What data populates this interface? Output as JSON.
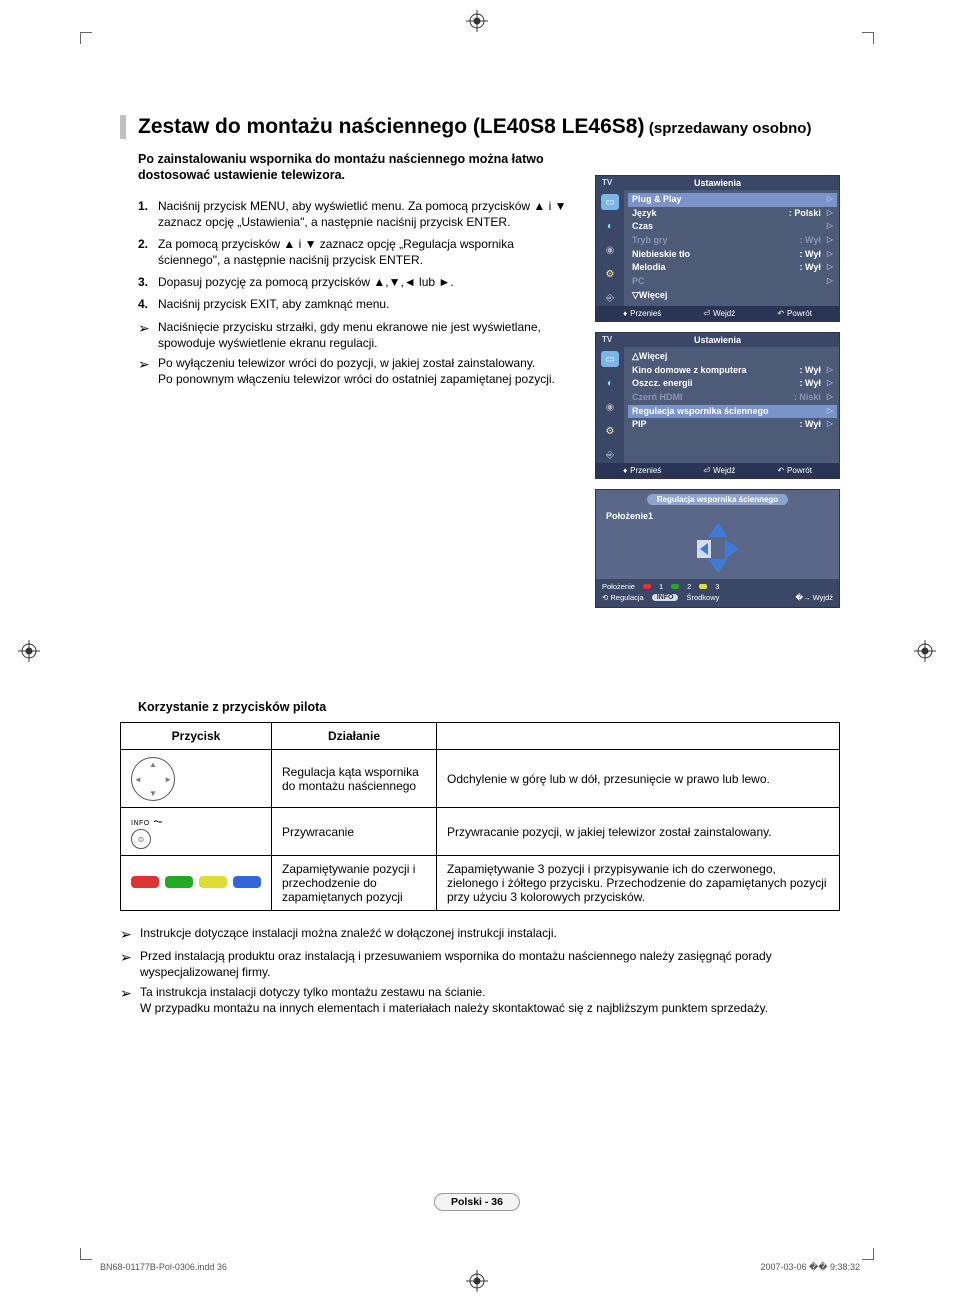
{
  "title": {
    "main": "Zestaw do montażu naściennego (LE40S8 LE46S8)",
    "subtitle": "(sprzedawany osobno)"
  },
  "intro": "Po zainstalowaniu wspornika do montażu naściennego można łatwo dostosować ustawienie telewizora.",
  "steps": [
    {
      "num": "1.",
      "text": "Naciśnij przycisk MENU, aby wyświetlić menu. Za pomocą przycisków ▲ i ▼ zaznacz opcję „Ustawienia\", a następnie naciśnij przycisk ENTER."
    },
    {
      "num": "2.",
      "text": "Za pomocą przycisków ▲ i ▼ zaznacz opcję „Regulacja wspornika ściennego\", a następnie naciśnij przycisk ENTER."
    },
    {
      "num": "3.",
      "text": "Dopasuj pozycję za pomocą przycisków ▲,▼,◄ lub ►."
    },
    {
      "num": "4.",
      "text": "Naciśnij przycisk EXIT, aby zamknąć menu."
    }
  ],
  "step_notes": [
    "Naciśnięcie przycisku strzałki, gdy menu ekranowe nie jest wyświetlane, spowoduje wyświetlenie ekranu regulacji.",
    "Po wyłączeniu telewizor wróci do pozycji, w jakiej został zainstalowany.\nPo ponownym włączeniu telewizor wróci do ostatniej zapamiętanej pozycji."
  ],
  "osd1": {
    "tv": "TV",
    "title": "Ustawienia",
    "rows": [
      {
        "label": "Plug & Play",
        "val": "",
        "sel": true
      },
      {
        "label": "Język",
        "val": ": Polski"
      },
      {
        "label": "Czas",
        "val": ""
      },
      {
        "label": "Tryb gry",
        "val": ": Wył",
        "dim": true
      },
      {
        "label": "Niebieskie tło",
        "val": ": Wył"
      },
      {
        "label": "Melodia",
        "val": ": Wył"
      },
      {
        "label": "PC",
        "val": "",
        "dim": true
      },
      {
        "label": "▽Więcej",
        "val": ""
      }
    ],
    "footer": {
      "move": "Przenieś",
      "enter": "Wejdź",
      "return": "Powrót"
    }
  },
  "osd2": {
    "tv": "TV",
    "title": "Ustawienia",
    "rows": [
      {
        "label": "△Więcej",
        "val": ""
      },
      {
        "label": "Kino domowe z komputera",
        "val": ": Wył"
      },
      {
        "label": "Oszcz. energii",
        "val": ": Wył"
      },
      {
        "label": "Czerń HDMI",
        "val": ": Niski",
        "dim": true
      },
      {
        "label": "Regulacja wspornika ściennego",
        "val": "",
        "sel": true
      },
      {
        "label": "PIP",
        "val": ": Wył"
      }
    ],
    "footer": {
      "move": "Przenieś",
      "enter": "Wejdź",
      "return": "Powrót"
    }
  },
  "osd3": {
    "title": "Regulacja wspornika ściennego",
    "position_label": "Położenie1",
    "foot_pos": "Położenie",
    "foot_nums": [
      "1",
      "2",
      "3"
    ],
    "foot_adjust": "Regulacja",
    "foot_center": "Środkowy",
    "foot_exit": "Wyjdź",
    "info": "INFO"
  },
  "remote": {
    "heading": "Korzystanie z przycisków pilota",
    "headers": {
      "button": "Przycisk",
      "action": "Działanie"
    },
    "rows": [
      {
        "icon": "dpad",
        "action": "Regulacja kąta wspornika do montażu naściennego",
        "desc": "Odchylenie w górę lub w dół, przesunięcie w prawo lub lewo."
      },
      {
        "icon": "info",
        "info_label": "INFO",
        "action": "Przywracanie",
        "desc": "Przywracanie pozycji, w jakiej telewizor został zainstalowany."
      },
      {
        "icon": "colors",
        "action": "Zapamiętywanie pozycji i przechodzenie do zapamiętanych pozycji",
        "desc": "Zapamiętywanie 3 pozycji i przypisywanie ich do czerwonego, zielonego i żółtego przycisku. Przechodzenie do zapamiętanych pozycji przy użyciu 3 kolorowych przycisków."
      }
    ]
  },
  "bottom_notes": [
    "Instrukcje dotyczące instalacji można znaleźć w dołączonej instrukcji instalacji.",
    "Przed instalacją produktu oraz instalacją i przesuwaniem wspornika do montażu naściennego należy zasięgnąć porady wyspecjalizowanej firmy.",
    "Ta instrukcja instalacji dotyczy tylko montażu zestawu na ścianie.\nW przypadku montażu na innych elementach i materiałach należy skontaktować się z najbliższym punktem sprzedaży."
  ],
  "page_footer": "Polski - 36",
  "print": {
    "file": "BN68-01177B-Pol-0306.indd   36",
    "time": "2007-03-06   �� 9:38:32"
  },
  "colors": {
    "osd_bg": "#4d5a78",
    "osd_header": "#3a4766",
    "osd_sel": "#7a93c9",
    "osd_footer": "#2a3555"
  }
}
